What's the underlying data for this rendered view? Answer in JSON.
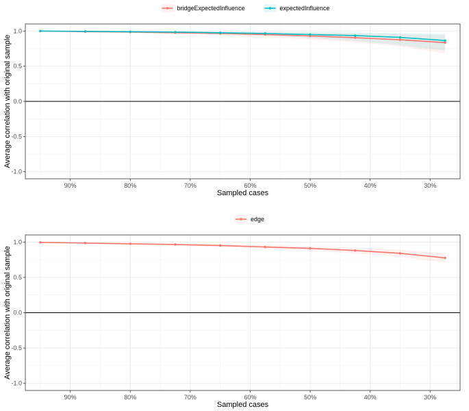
{
  "chart_data": [
    {
      "type": "line",
      "title": "",
      "xlabel": "Sampled cases",
      "ylabel": "Average correlation with original sample",
      "x_reversed": true,
      "xlim": [
        0.25,
        0.975
      ],
      "ylim": [
        -1.1,
        1.1
      ],
      "x_ticks": [
        0.9,
        0.8,
        0.7,
        0.6,
        0.5,
        0.4,
        0.3
      ],
      "x_tick_labels": [
        "90%",
        "80%",
        "70%",
        "60%",
        "50%",
        "40%",
        "30%"
      ],
      "y_ticks": [
        -1.0,
        -0.5,
        0.0,
        0.5,
        1.0
      ],
      "y_tick_labels": [
        "-1.0",
        "-0.5",
        "0.0",
        "0.5",
        "1.0"
      ],
      "zero_line": true,
      "grid": true,
      "legend_position": "top",
      "x": [
        0.95,
        0.875,
        0.8,
        0.725,
        0.65,
        0.575,
        0.5,
        0.425,
        0.35,
        0.275
      ],
      "series": [
        {
          "name": "bridgeExpectedInfluence",
          "color": "#F8766D",
          "values": [
            1.0,
            0.99,
            0.985,
            0.975,
            0.965,
            0.95,
            0.93,
            0.905,
            0.875,
            0.835
          ],
          "lower": [
            1.0,
            0.985,
            0.975,
            0.96,
            0.94,
            0.915,
            0.88,
            0.84,
            0.78,
            0.68
          ],
          "upper": [
            1.0,
            0.995,
            0.995,
            0.99,
            0.99,
            0.985,
            0.98,
            0.97,
            0.955,
            0.94
          ]
        },
        {
          "name": "expectedInfluence",
          "color": "#00BFC4",
          "values": [
            1.0,
            0.995,
            0.99,
            0.985,
            0.975,
            0.965,
            0.95,
            0.935,
            0.91,
            0.865
          ],
          "lower": [
            1.0,
            0.99,
            0.98,
            0.97,
            0.955,
            0.935,
            0.9,
            0.86,
            0.8,
            0.72
          ],
          "upper": [
            1.0,
            1.0,
            0.998,
            0.995,
            0.993,
            0.99,
            0.985,
            0.98,
            0.97,
            0.96
          ]
        }
      ]
    },
    {
      "type": "line",
      "title": "",
      "xlabel": "Sampled cases",
      "ylabel": "Average correlation with original sample",
      "x_reversed": true,
      "xlim": [
        0.25,
        0.975
      ],
      "ylim": [
        -1.1,
        1.1
      ],
      "x_ticks": [
        0.9,
        0.8,
        0.7,
        0.6,
        0.5,
        0.4,
        0.3
      ],
      "x_tick_labels": [
        "90%",
        "80%",
        "70%",
        "60%",
        "50%",
        "40%",
        "30%"
      ],
      "y_ticks": [
        -1.0,
        -0.5,
        0.0,
        0.5,
        1.0
      ],
      "y_tick_labels": [
        "-1.0",
        "-0.5",
        "0.0",
        "0.5",
        "1.0"
      ],
      "zero_line": true,
      "grid": true,
      "legend_position": "top",
      "x": [
        0.95,
        0.875,
        0.8,
        0.725,
        0.65,
        0.575,
        0.5,
        0.425,
        0.35,
        0.275
      ],
      "series": [
        {
          "name": "edge",
          "color": "#F8766D",
          "values": [
            0.995,
            0.985,
            0.975,
            0.965,
            0.95,
            0.93,
            0.91,
            0.88,
            0.84,
            0.775
          ],
          "lower": [
            0.993,
            0.98,
            0.965,
            0.95,
            0.93,
            0.905,
            0.875,
            0.84,
            0.79,
            0.71
          ],
          "upper": [
            0.997,
            0.99,
            0.985,
            0.978,
            0.97,
            0.955,
            0.94,
            0.92,
            0.89,
            0.84
          ]
        }
      ]
    }
  ]
}
